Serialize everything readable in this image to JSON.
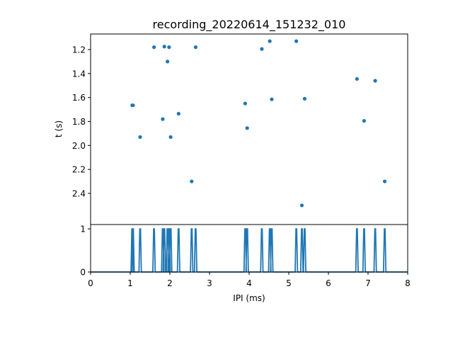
{
  "chart_data": {
    "title": "recording_20220614_151232_010",
    "top_panel": {
      "type": "scatter",
      "xlabel": "",
      "ylabel": "t (s)",
      "xlim": [
        0,
        8
      ],
      "ylim": [
        2.66,
        1.07
      ],
      "y_inverted": true,
      "yticks": [
        "1.2",
        "1.4",
        "1.6",
        "1.8",
        "2.0",
        "2.2",
        "2.4"
      ],
      "marker_color": "#1f77b4",
      "points": [
        {
          "x": 1.05,
          "y": 1.665
        },
        {
          "x": 1.07,
          "y": 1.665
        },
        {
          "x": 1.25,
          "y": 1.93
        },
        {
          "x": 1.6,
          "y": 1.18
        },
        {
          "x": 1.82,
          "y": 1.78
        },
        {
          "x": 1.86,
          "y": 1.175
        },
        {
          "x": 1.94,
          "y": 1.3
        },
        {
          "x": 1.98,
          "y": 1.18
        },
        {
          "x": 2.02,
          "y": 1.93
        },
        {
          "x": 2.22,
          "y": 1.735
        },
        {
          "x": 2.55,
          "y": 2.3
        },
        {
          "x": 2.65,
          "y": 1.18
        },
        {
          "x": 3.9,
          "y": 1.65
        },
        {
          "x": 3.95,
          "y": 1.855
        },
        {
          "x": 4.32,
          "y": 1.195
        },
        {
          "x": 4.52,
          "y": 1.13
        },
        {
          "x": 4.57,
          "y": 1.615
        },
        {
          "x": 5.19,
          "y": 1.13
        },
        {
          "x": 5.33,
          "y": 2.5
        },
        {
          "x": 5.4,
          "y": 1.61
        },
        {
          "x": 6.72,
          "y": 1.445
        },
        {
          "x": 6.9,
          "y": 1.795
        },
        {
          "x": 7.18,
          "y": 1.46
        },
        {
          "x": 7.42,
          "y": 2.3
        }
      ]
    },
    "bottom_panel": {
      "type": "line",
      "xlabel": "IPI (ms)",
      "ylabel": "",
      "xlim": [
        0,
        8
      ],
      "ylim": [
        0,
        1.1
      ],
      "xticks": [
        "0",
        "1",
        "2",
        "3",
        "4",
        "5",
        "6",
        "7",
        "8"
      ],
      "yticks": [
        "0",
        "1"
      ],
      "line_color": "#1f77b4",
      "spike_positions": [
        1.05,
        1.07,
        1.25,
        1.6,
        1.82,
        1.86,
        1.94,
        1.98,
        2.02,
        2.22,
        2.55,
        2.65,
        3.9,
        3.95,
        4.32,
        4.52,
        4.57,
        5.19,
        5.33,
        5.4,
        6.72,
        6.9,
        7.18,
        7.42
      ],
      "spike_height": 1
    }
  }
}
